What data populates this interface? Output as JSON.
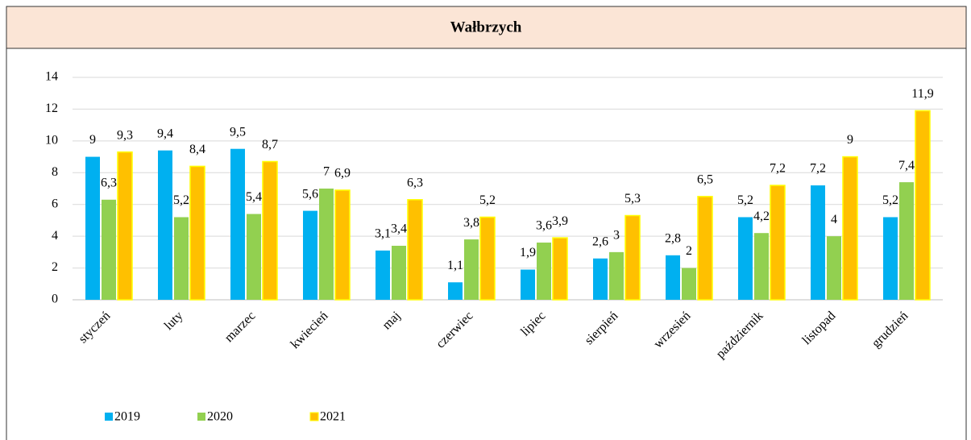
{
  "chart_data": {
    "type": "bar",
    "title": "Wałbrzych",
    "categories": [
      "styczeń",
      "luty",
      "marzec",
      "kwiecień",
      "maj",
      "czerwiec",
      "lipiec",
      "sierpień",
      "wrzesień",
      "październik",
      "listopad",
      "grudzień"
    ],
    "series": [
      {
        "name": "2019",
        "color": "#00b0f0",
        "values": [
          9,
          9.4,
          9.5,
          5.6,
          3.1,
          1.1,
          1.9,
          2.6,
          2.8,
          5.2,
          7.2,
          5.2
        ],
        "value_labels": [
          "9",
          "9,4",
          "9,5",
          "5,6",
          "3,1",
          "1,1",
          "1,9",
          "2,6",
          "2,8",
          "5,2",
          "7,2",
          "5,2"
        ]
      },
      {
        "name": "2020",
        "color": "#92d050",
        "values": [
          6.3,
          5.2,
          5.4,
          7,
          3.4,
          3.8,
          3.6,
          3,
          2,
          4.2,
          4,
          7.4
        ],
        "value_labels": [
          "6,3",
          "5,2",
          "5,4",
          "7",
          "3,4",
          "3,8",
          "3,6",
          "3",
          "2",
          "4,2",
          "4",
          "7,4"
        ]
      },
      {
        "name": "2021",
        "color": "#ffc000",
        "values": [
          9.3,
          8.4,
          8.7,
          6.9,
          6.3,
          5.2,
          3.9,
          5.3,
          6.5,
          7.2,
          9,
          11.9
        ],
        "value_labels": [
          "9,3",
          "8,4",
          "8,7",
          "6,9",
          "6,3",
          "5,2",
          "3,9",
          "5,3",
          "6,5",
          "7,2",
          "9",
          "11,9"
        ]
      }
    ],
    "ylim": [
      0,
      14
    ],
    "yticks": [
      0,
      2,
      4,
      6,
      8,
      10,
      12,
      14
    ],
    "grid": true,
    "legend": "bottom"
  }
}
